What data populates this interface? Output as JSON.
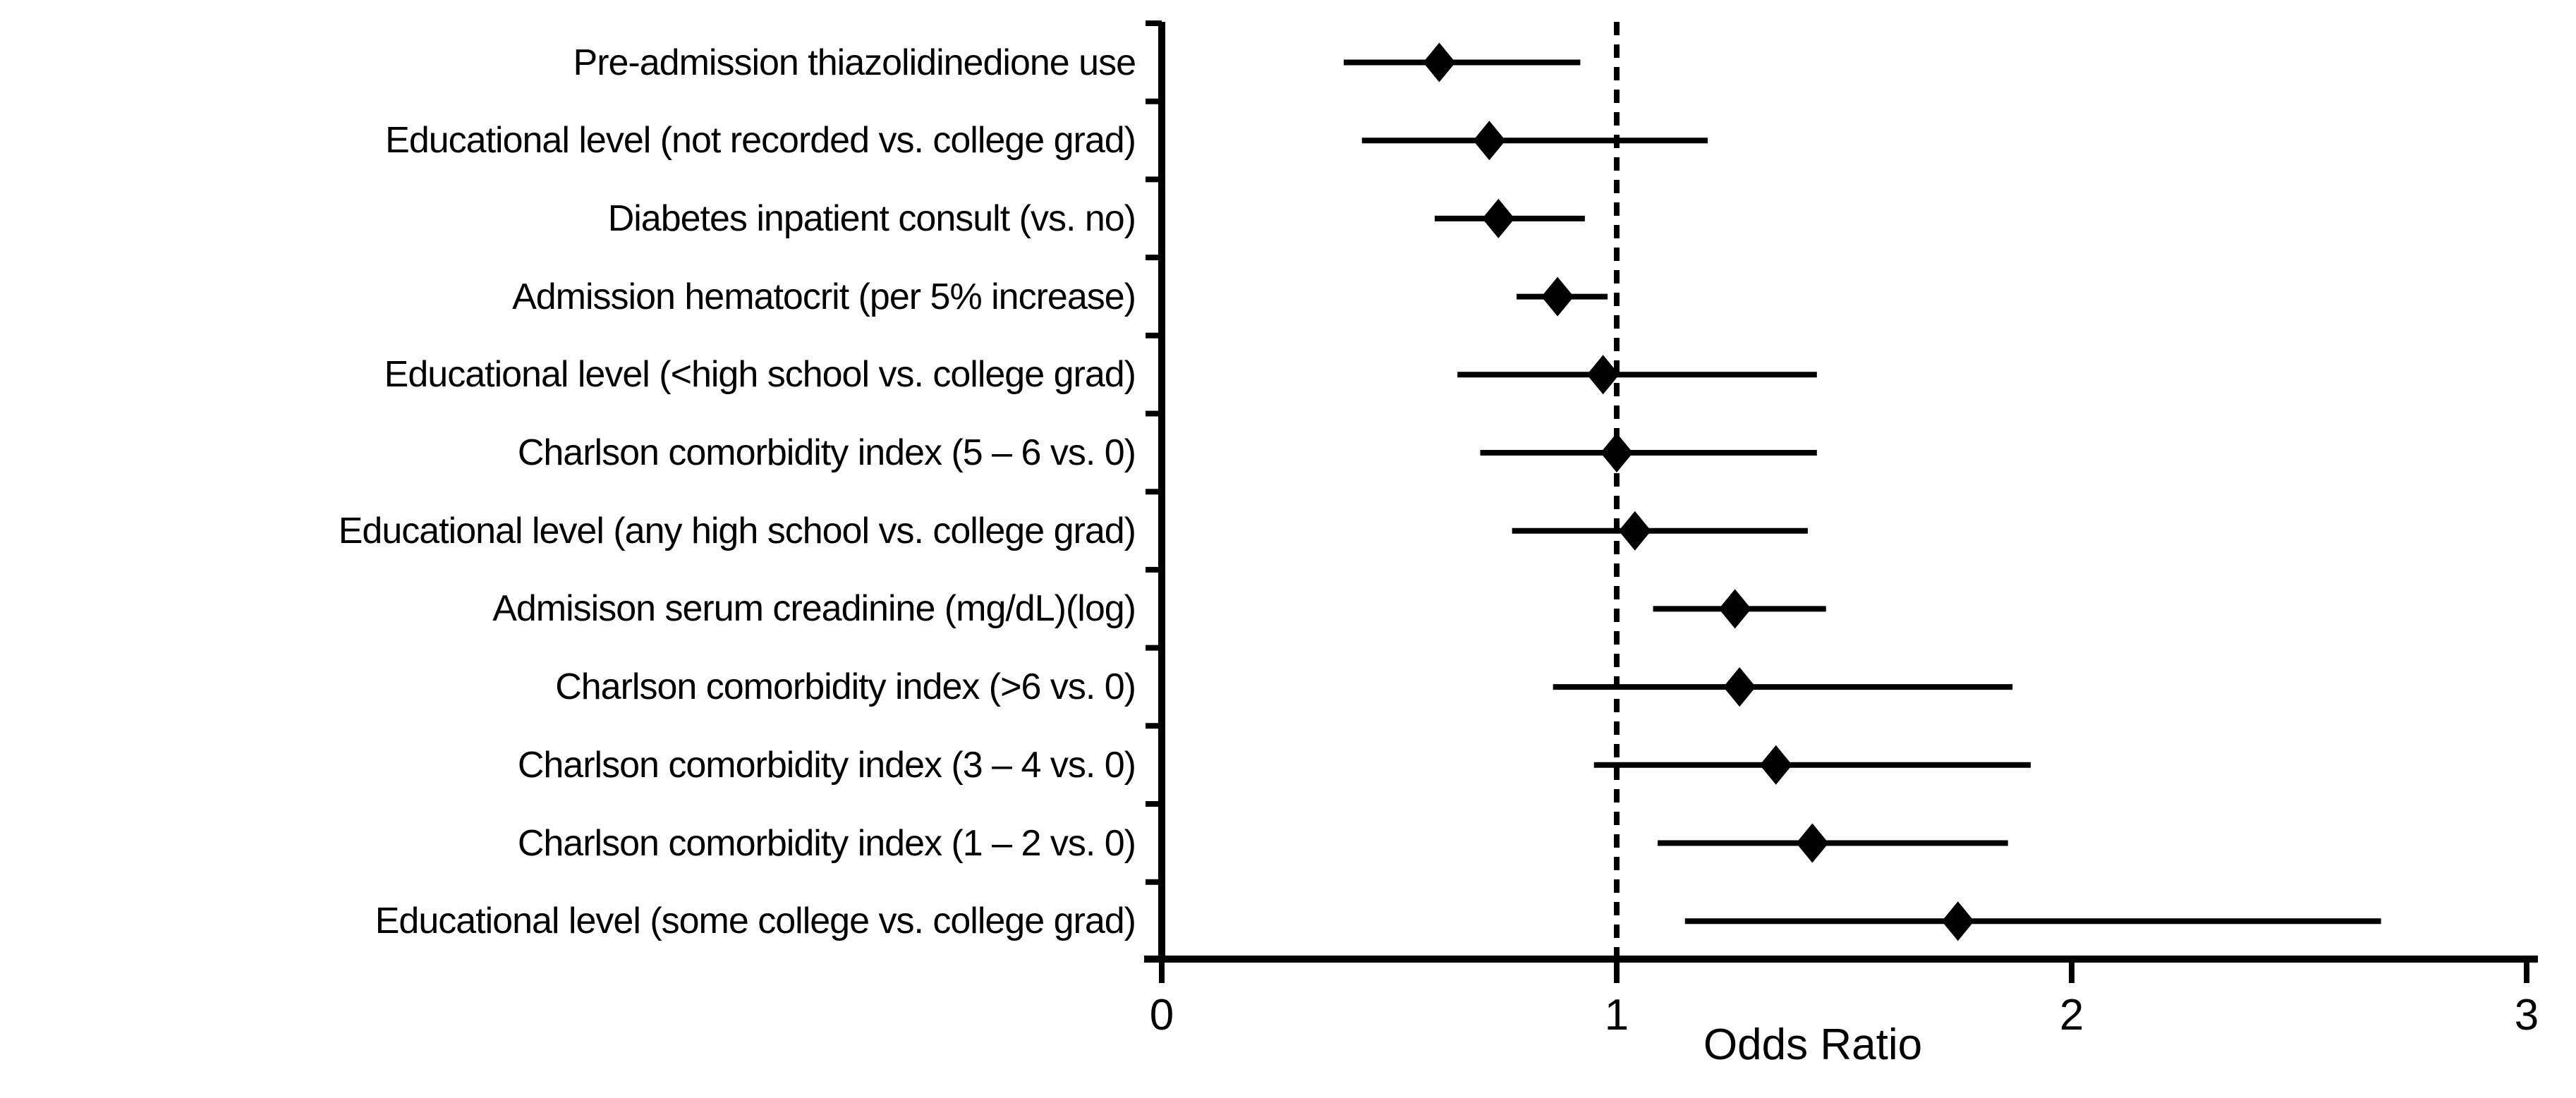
{
  "figure": {
    "background_color": "#ffffff",
    "ink_color": "#000000"
  },
  "chart_data": {
    "type": "scatter",
    "variant": "forest-plot",
    "title": "",
    "xlabel": "Odds Ratio",
    "ylabel": "",
    "xlim": [
      0,
      3
    ],
    "x_ticks": [
      "0",
      "1",
      "2",
      "3"
    ],
    "x_tick_values": [
      0,
      1,
      2,
      3
    ],
    "reference_line_x": 1,
    "reference_line_style": "dashed",
    "grid": "off",
    "legend": "none",
    "marker": "diamond",
    "rows": [
      {
        "label": "Pre-admission thiazolidinedione use",
        "or": 0.61,
        "ci_low": 0.4,
        "ci_high": 0.92
      },
      {
        "label": "Educational level (not recorded vs. college grad)",
        "or": 0.72,
        "ci_low": 0.44,
        "ci_high": 1.2
      },
      {
        "label": "Diabetes inpatient consult (vs. no)",
        "or": 0.74,
        "ci_low": 0.6,
        "ci_high": 0.93
      },
      {
        "label": "Admission hematocrit (per 5% increase)",
        "or": 0.87,
        "ci_low": 0.78,
        "ci_high": 0.98
      },
      {
        "label": "Educational level (<high school vs. college grad)",
        "or": 0.97,
        "ci_low": 0.65,
        "ci_high": 1.44
      },
      {
        "label": "Charlson comorbidity index (5 – 6 vs. 0)",
        "or": 1.0,
        "ci_low": 0.7,
        "ci_high": 1.44
      },
      {
        "label": "Educational level (any high school vs. college grad)",
        "or": 1.04,
        "ci_low": 0.77,
        "ci_high": 1.42
      },
      {
        "label": "Admisison serum creadinine (mg/dL)(log)",
        "or": 1.26,
        "ci_low": 1.08,
        "ci_high": 1.46
      },
      {
        "label": "Charlson comorbidity index (>6 vs. 0)",
        "or": 1.27,
        "ci_low": 0.86,
        "ci_high": 1.87
      },
      {
        "label": "Charlson comorbidity index (3 – 4 vs. 0)",
        "or": 1.35,
        "ci_low": 0.95,
        "ci_high": 1.91
      },
      {
        "label": "Charlson comorbidity index (1 – 2 vs. 0)",
        "or": 1.43,
        "ci_low": 1.09,
        "ci_high": 1.86
      },
      {
        "label": "Educational level (some college vs. college grad)",
        "or": 1.75,
        "ci_low": 1.15,
        "ci_high": 2.68
      }
    ]
  }
}
